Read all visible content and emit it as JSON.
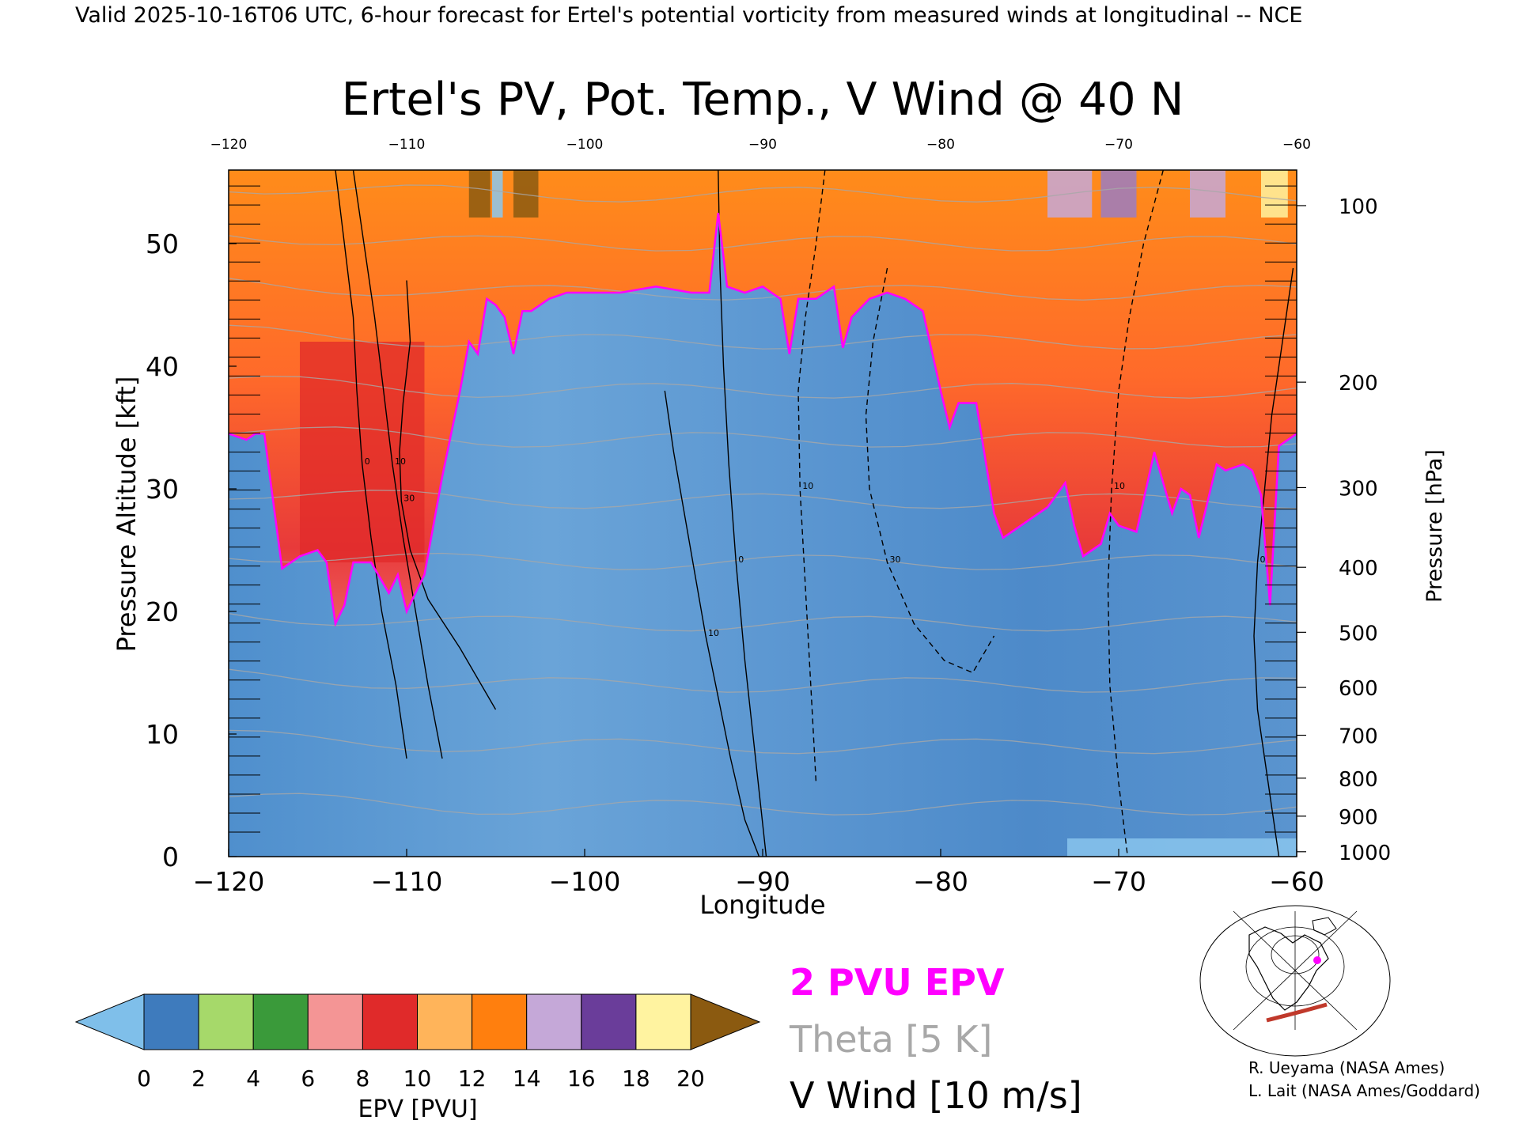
{
  "header": "Valid 2025-10-16T06 UTC, 6-hour forecast for Ertel's potential vorticity from measured winds at longitudinal -- NCE",
  "credits": [
    "R. Ueyama (NASA Ames)",
    "L. Lait (NASA Ames/Goddard)"
  ],
  "colors": {
    "pv_line": "#ff00ff",
    "theta": "#a8a8a8",
    "wind": "#000000",
    "troposphere_blue": "#6ea3d4",
    "section_line": "#c0392b"
  },
  "chart_data": {
    "type": "heatmap",
    "title": "Ertel's PV, Pot. Temp., V Wind @ 40 N",
    "xlabel": "Longitude",
    "ylabel": "Pressure Altitude [kft]",
    "y2label": "Pressure [hPa]",
    "xlim": [
      -120,
      -60
    ],
    "ylim": [
      0,
      56
    ],
    "x_ticks": [
      -120,
      -110,
      -100,
      -90,
      -80,
      -70,
      -60
    ],
    "top_x_ticks": [
      -120,
      -110,
      -100,
      -90,
      -80,
      -70,
      -60
    ],
    "y_ticks": [
      0,
      10,
      20,
      30,
      40,
      50
    ],
    "pressure_ticks": [
      {
        "hpa": 100,
        "kft": 53.1
      },
      {
        "hpa": 200,
        "kft": 38.7
      },
      {
        "hpa": 300,
        "kft": 30.1
      },
      {
        "hpa": 400,
        "kft": 23.6
      },
      {
        "hpa": 500,
        "kft": 18.3
      },
      {
        "hpa": 600,
        "kft": 13.8
      },
      {
        "hpa": 700,
        "kft": 9.9
      },
      {
        "hpa": 800,
        "kft": 6.4
      },
      {
        "hpa": 900,
        "kft": 3.3
      },
      {
        "hpa": 1000,
        "kft": 0.4
      }
    ],
    "tropopause_2pvu": {
      "x": [
        -120,
        -119,
        -118.5,
        -118,
        -117,
        -116,
        -115,
        -114.5,
        -114,
        -113.5,
        -113,
        -112,
        -111,
        -110.5,
        -110,
        -109,
        -108,
        -107,
        -106.5,
        -106,
        -105.5,
        -105,
        -104.5,
        -104,
        -103.5,
        -103,
        -102,
        -101,
        -100,
        -98,
        -96,
        -94,
        -93,
        -92.5,
        -92,
        -91,
        -90,
        -89,
        -88.5,
        -88,
        -87,
        -86,
        -85.5,
        -85,
        -84,
        -83,
        -82,
        -81,
        -80,
        -79.5,
        -79,
        -78,
        -77,
        -76.5,
        -76,
        -75,
        -74,
        -73,
        -72.5,
        -72,
        -71,
        -70.5,
        -70,
        -69,
        -68,
        -67,
        -66.5,
        -66,
        -65.5,
        -65,
        -64.5,
        -64,
        -63,
        -62.5,
        -62,
        -61.5,
        -61,
        -60.5,
        -60
      ],
      "kft": [
        34.5,
        34.0,
        34.5,
        34.5,
        23.5,
        24.5,
        25.0,
        24.0,
        19.0,
        20.5,
        24.0,
        24.0,
        21.5,
        23.0,
        20.0,
        23.0,
        31.0,
        38.0,
        42.0,
        41.0,
        45.5,
        45.0,
        44.0,
        41.0,
        44.5,
        44.5,
        45.5,
        46.0,
        46.0,
        46.0,
        46.5,
        46.0,
        46.0,
        52.5,
        46.5,
        46.0,
        46.5,
        45.5,
        41.0,
        45.5,
        45.5,
        46.5,
        41.5,
        44.0,
        45.5,
        46.0,
        45.5,
        44.5,
        38.0,
        35.0,
        37.0,
        37.0,
        28.0,
        26.0,
        26.5,
        27.5,
        28.5,
        30.5,
        27.0,
        24.5,
        25.5,
        28.0,
        27.0,
        26.5,
        33.0,
        28.0,
        30.0,
        29.5,
        26.0,
        29.0,
        32.0,
        31.5,
        32.0,
        31.5,
        29.5,
        20.5,
        33.5,
        34.0,
        34.5
      ]
    },
    "wind_contours": [
      {
        "label": "0",
        "style": "solid",
        "x": [
          -114,
          -113.5,
          -113,
          -112.8,
          -112.5,
          -112.0,
          -111.4,
          -110.6,
          -110
        ],
        "kft": [
          56,
          50,
          44,
          38,
          32,
          26,
          20,
          14,
          8
        ]
      },
      {
        "label": "10",
        "style": "solid",
        "x": [
          -113,
          -112.4,
          -111.8,
          -111.3,
          -110.8,
          -110.2,
          -109.5,
          -108.8,
          -108
        ],
        "kft": [
          56,
          50,
          44,
          38,
          32,
          26,
          20,
          14,
          8
        ]
      },
      {
        "label": "30",
        "style": "solid",
        "x": [
          -110,
          -109.8,
          -110.2,
          -110.4,
          -110.3,
          -109.8,
          -108.8,
          -107.0,
          -105
        ],
        "kft": [
          47,
          42,
          37,
          33,
          29,
          25,
          21,
          17,
          12
        ]
      },
      {
        "label": "10",
        "style": "solid",
        "x": [
          -95.5,
          -95.0,
          -94.4,
          -93.8,
          -93.2,
          -92.5,
          -91.8,
          -91.0,
          -90.2
        ],
        "kft": [
          38,
          33,
          28,
          23,
          18,
          13,
          8,
          3,
          0
        ]
      },
      {
        "label": "0",
        "style": "solid",
        "x": [
          -92.5,
          -92.4,
          -92.2,
          -91.9,
          -91.5,
          -91.0,
          -90.4,
          -89.8
        ],
        "kft": [
          56,
          48,
          40,
          32,
          24,
          16,
          8,
          0
        ]
      },
      {
        "label": "10",
        "style": "dashed",
        "x": [
          -86.5,
          -87.0,
          -87.6,
          -88.0,
          -87.9,
          -87.6,
          -87.3,
          -87.0
        ],
        "kft": [
          56,
          50,
          44,
          38,
          30,
          22,
          14,
          6
        ]
      },
      {
        "label": "30",
        "style": "dashed",
        "x": [
          -83,
          -83.8,
          -84.2,
          -84.0,
          -83.0,
          -81.5,
          -79.8,
          -78.2,
          -77
        ],
        "kft": [
          48,
          42,
          36,
          30,
          24,
          19,
          16,
          15,
          18
        ]
      },
      {
        "label": "10",
        "style": "dashed",
        "x": [
          -67.5,
          -68.6,
          -69.4,
          -70.0,
          -70.4,
          -70.6,
          -70.5,
          -70.0,
          -69.5
        ],
        "kft": [
          56,
          50,
          44,
          38,
          30,
          22,
          14,
          6,
          0
        ]
      },
      {
        "label": "0",
        "style": "solid",
        "x": [
          -60.2,
          -60.8,
          -61.4,
          -61.8,
          -62.2,
          -62.4,
          -62.2,
          -61.6,
          -61
        ],
        "kft": [
          48,
          42,
          36,
          30,
          24,
          18,
          12,
          6,
          0
        ]
      }
    ],
    "pv_colorbar": {
      "label": "EPV [PVU]",
      "ticks": [
        0,
        2,
        4,
        6,
        8,
        10,
        12,
        14,
        16,
        18,
        20
      ],
      "colors": [
        "#7fbfea",
        "#3e7bbd",
        "#a6d96a",
        "#3a9a3a",
        "#f49595",
        "#e02a2a",
        "#ffb45a",
        "#ff7f0e",
        "#c5a8d8",
        "#6a3d9a",
        "#fff3a0",
        "#8b5a10"
      ]
    },
    "legend": [
      {
        "text": "2 PVU EPV",
        "color": "#ff00ff"
      },
      {
        "text": "Theta [5 K]",
        "color": "#a8a8a8"
      },
      {
        "text": "V Wind [10 m/s]",
        "color": "#000000"
      }
    ]
  }
}
